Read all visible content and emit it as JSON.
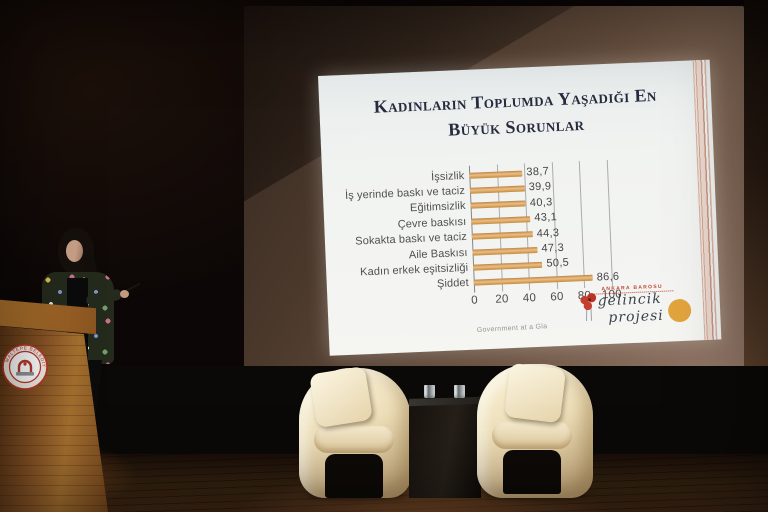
{
  "slide": {
    "title_line1": "Kadınların Toplumda Yaşadığı En",
    "title_line2": "Büyük Sorunlar",
    "caption": "Government at a Gla",
    "logo": {
      "header": "ANKARA BAROSU",
      "name_line1": "gelincik",
      "name_line2": "projesi",
      "accent_orange": "#e2a43e",
      "accent_red": "#bf4433"
    }
  },
  "chart_data": {
    "type": "bar",
    "orientation": "horizontal",
    "title": "Kadınların Toplumda Yaşadığı En Büyük Sorunlar",
    "categories": [
      "İşsizlik",
      "İş yerinde baskı ve taciz",
      "Eğitimsizlik",
      "Çevre baskısı",
      "Sokakta baskı ve taciz",
      "Aile Baskısı",
      "Kadın erkek eşitsizliği",
      "Şiddet"
    ],
    "values": [
      38.7,
      39.9,
      40.3,
      43.1,
      44.3,
      47.3,
      50.5,
      86.6
    ],
    "value_labels": [
      "38,7",
      "39,9",
      "40,3",
      "43,1",
      "44,3",
      "47,3",
      "50,5",
      "86,6"
    ],
    "x_ticks": [
      0,
      20,
      40,
      60,
      80,
      100
    ],
    "xlim": [
      0,
      100
    ],
    "grid": true,
    "legend": false,
    "bar_color": "#dd9a52"
  },
  "podium": {
    "emblem_text": "MALTEPE BELEDİYESİ"
  }
}
